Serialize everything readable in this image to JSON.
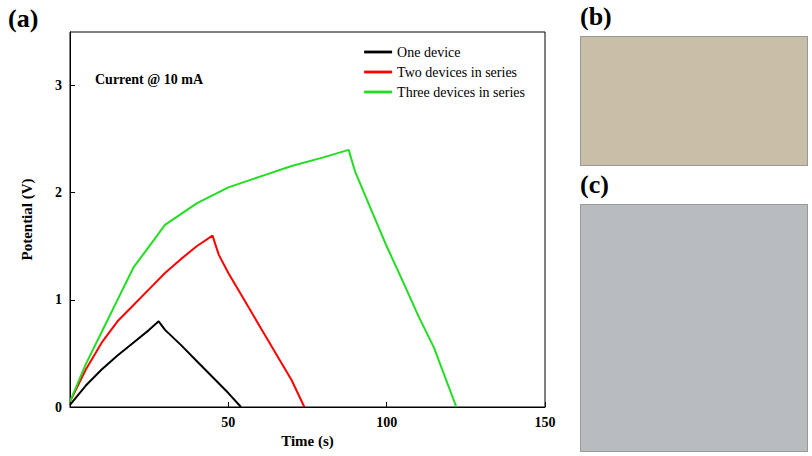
{
  "chart_data": {
    "type": "line",
    "x_label": "Time (s)",
    "y_label": "Potential (V)",
    "annotations": [
      {
        "text": "Current @ 10 mA"
      }
    ],
    "xlim": [
      0,
      150
    ],
    "xticks": [
      50,
      100,
      150
    ],
    "ylim": [
      0,
      3.5
    ],
    "yticks": [
      0,
      1,
      2,
      3
    ],
    "grid": false,
    "legend": "upper right",
    "series": [
      {
        "name": "One device",
        "color": "#000000",
        "x": [
          0,
          5,
          10,
          15,
          20,
          25,
          28,
          30,
          35,
          40,
          45,
          50,
          54
        ],
        "values": [
          0.02,
          0.2,
          0.35,
          0.48,
          0.6,
          0.72,
          0.8,
          0.72,
          0.58,
          0.43,
          0.28,
          0.13,
          0
        ]
      },
      {
        "name": "Two devices in series",
        "color": "#ff0000",
        "x": [
          0,
          5,
          10,
          15,
          20,
          25,
          30,
          35,
          40,
          45,
          47,
          50,
          55,
          60,
          65,
          70,
          74
        ],
        "values": [
          0.05,
          0.35,
          0.6,
          0.8,
          0.95,
          1.1,
          1.25,
          1.38,
          1.5,
          1.6,
          1.42,
          1.25,
          1.0,
          0.75,
          0.5,
          0.25,
          0
        ]
      },
      {
        "name": "Three devices in series",
        "color": "#22dd22",
        "x": [
          0,
          5,
          10,
          15,
          20,
          25,
          30,
          40,
          50,
          60,
          70,
          80,
          88,
          90,
          95,
          100,
          105,
          110,
          115,
          122
        ],
        "values": [
          0.05,
          0.4,
          0.7,
          1.0,
          1.3,
          1.5,
          1.7,
          1.9,
          2.05,
          2.15,
          2.25,
          2.33,
          2.4,
          2.2,
          1.85,
          1.5,
          1.18,
          0.85,
          0.55,
          0
        ]
      }
    ]
  },
  "panel_labels": [
    "(a)",
    "(b)",
    "(c)"
  ]
}
